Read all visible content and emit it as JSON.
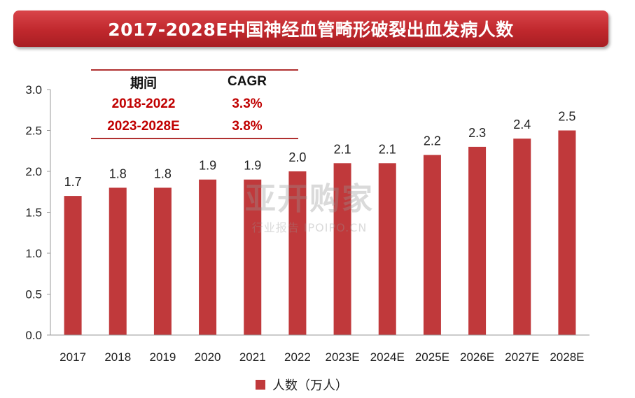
{
  "chart_data": {
    "type": "bar",
    "title": "2017-2028E中国神经血管畸形破裂出血发病人数",
    "categories": [
      "2017",
      "2018",
      "2019",
      "2020",
      "2021",
      "2022",
      "2023E",
      "2024E",
      "2025E",
      "2026E",
      "2027E",
      "2028E"
    ],
    "series": [
      {
        "name": "人数（万人）",
        "values": [
          1.7,
          1.8,
          1.8,
          1.9,
          1.9,
          2.0,
          2.1,
          2.1,
          2.2,
          2.3,
          2.4,
          2.5
        ]
      }
    ],
    "data_labels": [
      "1.7",
      "1.8",
      "1.8",
      "1.9",
      "1.9",
      "2.0",
      "2.1",
      "2.1",
      "2.2",
      "2.3",
      "2.4",
      "2.5"
    ],
    "y_ticks": [
      "0.0",
      "0.5",
      "1.0",
      "1.5",
      "2.0",
      "2.5",
      "3.0"
    ],
    "ylim": [
      0,
      3.0
    ],
    "xlabel": "",
    "ylabel": "",
    "grid": false,
    "legend_position": "bottom",
    "bar_color": "#c0393b"
  },
  "cagr_table": {
    "header": {
      "period": "期间",
      "cagr": "CAGR"
    },
    "rows": [
      {
        "period": "2018-2022",
        "cagr": "3.3%"
      },
      {
        "period": "2023-2028E",
        "cagr": "3.8%"
      }
    ]
  },
  "legend": {
    "label": "人数（万人）"
  },
  "watermark": {
    "main": "亚开购家",
    "sub": "行业报告 IPOIPO.CN"
  }
}
